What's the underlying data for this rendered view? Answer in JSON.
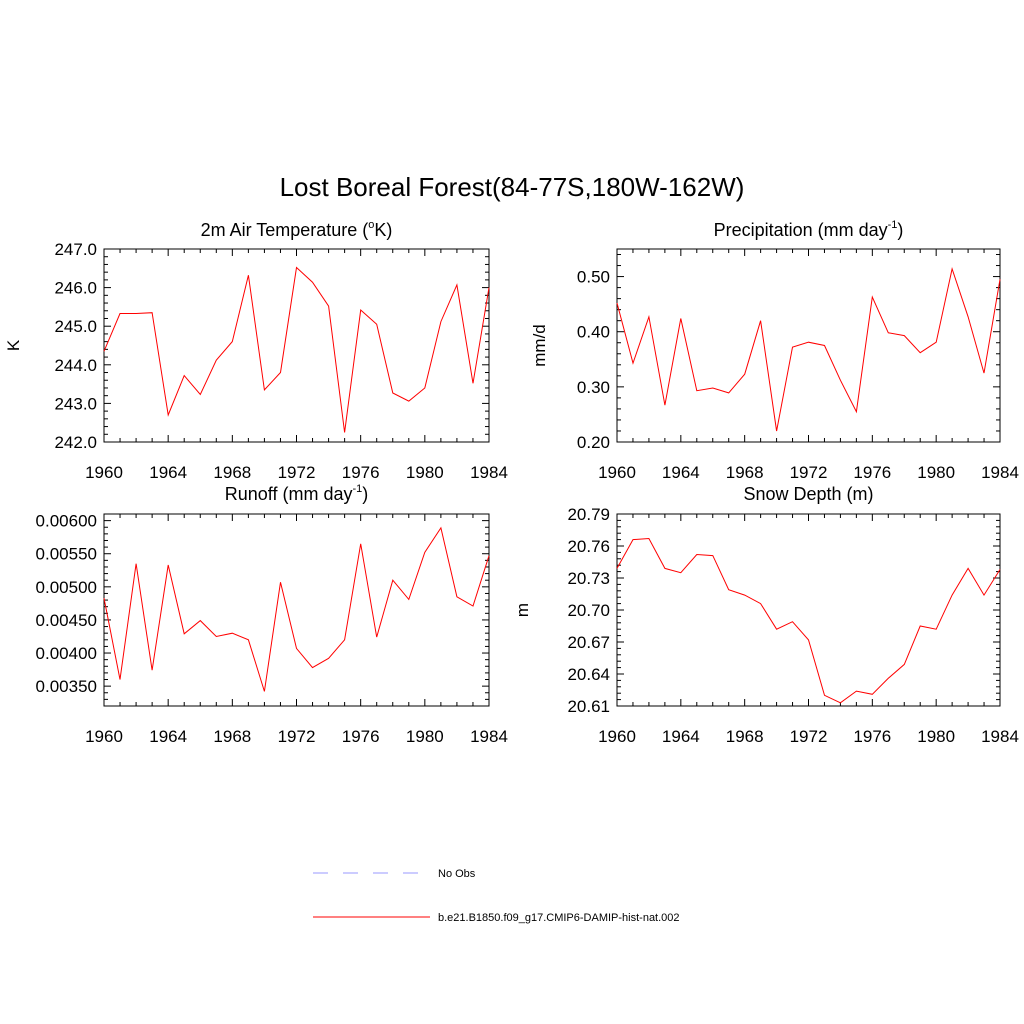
{
  "title": "Lost Boreal Forest(84-77S,180W-162W)",
  "chart_data": [
    {
      "type": "line",
      "title_main": "2m Air Temperature (",
      "title_sup": "o",
      "title_tail": "K)",
      "ylabel": "K",
      "xlim": [
        1960,
        1984
      ],
      "ylim": [
        242.0,
        247.0
      ],
      "xticks": [
        "1960",
        "1964",
        "1968",
        "1972",
        "1976",
        "1980",
        "1984"
      ],
      "yticks": [
        "242.0",
        "243.0",
        "244.0",
        "245.0",
        "246.0",
        "247.0"
      ],
      "x": [
        1960,
        1961,
        1962,
        1963,
        1964,
        1965,
        1966,
        1967,
        1968,
        1969,
        1970,
        1971,
        1972,
        1973,
        1974,
        1975,
        1976,
        1977,
        1978,
        1979,
        1980,
        1981,
        1982,
        1983,
        1984
      ],
      "series": [
        {
          "name": "b.e21.B1850.f09_g17.CMIP6-DAMIP-hist-nat.002",
          "color": "#ff0000",
          "values": [
            244.35,
            245.33,
            245.33,
            245.35,
            242.7,
            243.72,
            243.23,
            244.12,
            244.6,
            246.32,
            243.35,
            243.8,
            246.52,
            246.14,
            245.52,
            242.25,
            245.42,
            245.05,
            243.27,
            243.06,
            243.4,
            245.12,
            246.07,
            243.52,
            246.0
          ]
        }
      ]
    },
    {
      "type": "line",
      "title_main": "Precipitation (mm day",
      "title_sup": "-1",
      "title_tail": ")",
      "ylabel": "mm/d",
      "xlim": [
        1960,
        1984
      ],
      "ylim": [
        0.2,
        0.55
      ],
      "xticks": [
        "1960",
        "1964",
        "1968",
        "1972",
        "1976",
        "1980",
        "1984"
      ],
      "yticks": [
        "0.20",
        "0.30",
        "0.40",
        "0.50"
      ],
      "x": [
        1960,
        1961,
        1962,
        1963,
        1964,
        1965,
        1966,
        1967,
        1968,
        1969,
        1970,
        1971,
        1972,
        1973,
        1974,
        1975,
        1976,
        1977,
        1978,
        1979,
        1980,
        1981,
        1982,
        1983,
        1984
      ],
      "series": [
        {
          "name": "b.e21.B1850.f09_g17.CMIP6-DAMIP-hist-nat.002",
          "color": "#ff0000",
          "values": [
            0.452,
            0.343,
            0.427,
            0.267,
            0.424,
            0.293,
            0.298,
            0.289,
            0.323,
            0.42,
            0.22,
            0.372,
            0.381,
            0.375,
            0.312,
            0.255,
            0.463,
            0.398,
            0.393,
            0.362,
            0.381,
            0.514,
            0.427,
            0.325,
            0.495
          ]
        }
      ]
    },
    {
      "type": "line",
      "title_main": "Runoff (mm day",
      "title_sup": "-1",
      "title_tail": ")",
      "ylabel": "",
      "xlim": [
        1960,
        1984
      ],
      "ylim": [
        0.0032,
        0.0061
      ],
      "xticks": [
        "1960",
        "1964",
        "1968",
        "1972",
        "1976",
        "1980",
        "1984"
      ],
      "yticks": [
        "0.00350",
        "0.00400",
        "0.00450",
        "0.00500",
        "0.00550",
        "0.00600"
      ],
      "x": [
        1960,
        1961,
        1962,
        1963,
        1964,
        1965,
        1966,
        1967,
        1968,
        1969,
        1970,
        1971,
        1972,
        1973,
        1974,
        1975,
        1976,
        1977,
        1978,
        1979,
        1980,
        1981,
        1982,
        1983,
        1984
      ],
      "series": [
        {
          "name": "b.e21.B1850.f09_g17.CMIP6-DAMIP-hist-nat.002",
          "color": "#ff0000",
          "values": [
            0.00483,
            0.0036,
            0.00535,
            0.00374,
            0.00533,
            0.00429,
            0.00449,
            0.00425,
            0.0043,
            0.0042,
            0.00342,
            0.00507,
            0.00407,
            0.00378,
            0.00392,
            0.0042,
            0.00565,
            0.00424,
            0.0051,
            0.00481,
            0.00552,
            0.00589,
            0.00485,
            0.00471,
            0.00547
          ]
        }
      ]
    },
    {
      "type": "line",
      "title_main": "Snow Depth (m)",
      "title_sup": "",
      "title_tail": "",
      "ylabel": "m",
      "xlim": [
        1960,
        1984
      ],
      "ylim": [
        20.61,
        20.79
      ],
      "xticks": [
        "1960",
        "1964",
        "1968",
        "1972",
        "1976",
        "1980",
        "1984"
      ],
      "yticks": [
        "20.61",
        "20.64",
        "20.67",
        "20.70",
        "20.73",
        "20.76",
        "20.79"
      ],
      "x": [
        1960,
        1961,
        1962,
        1963,
        1964,
        1965,
        1966,
        1967,
        1968,
        1969,
        1970,
        1971,
        1972,
        1973,
        1974,
        1975,
        1976,
        1977,
        1978,
        1979,
        1980,
        1981,
        1982,
        1983,
        1984
      ],
      "series": [
        {
          "name": "b.e21.B1850.f09_g17.CMIP6-DAMIP-hist-nat.002",
          "color": "#ff0000",
          "values": [
            20.739,
            20.766,
            20.767,
            20.739,
            20.735,
            20.752,
            20.751,
            20.719,
            20.714,
            20.706,
            20.682,
            20.689,
            20.672,
            20.62,
            20.613,
            20.624,
            20.621,
            20.636,
            20.649,
            20.685,
            20.682,
            20.714,
            20.739,
            20.714,
            20.738
          ]
        }
      ]
    }
  ],
  "legend": {
    "items": [
      {
        "label": "No Obs",
        "color": "#9999ff",
        "dash": true
      },
      {
        "label": "b.e21.B1850.f09_g17.CMIP6-DAMIP-hist-nat.002",
        "color": "#ff0000",
        "dash": false
      }
    ]
  }
}
